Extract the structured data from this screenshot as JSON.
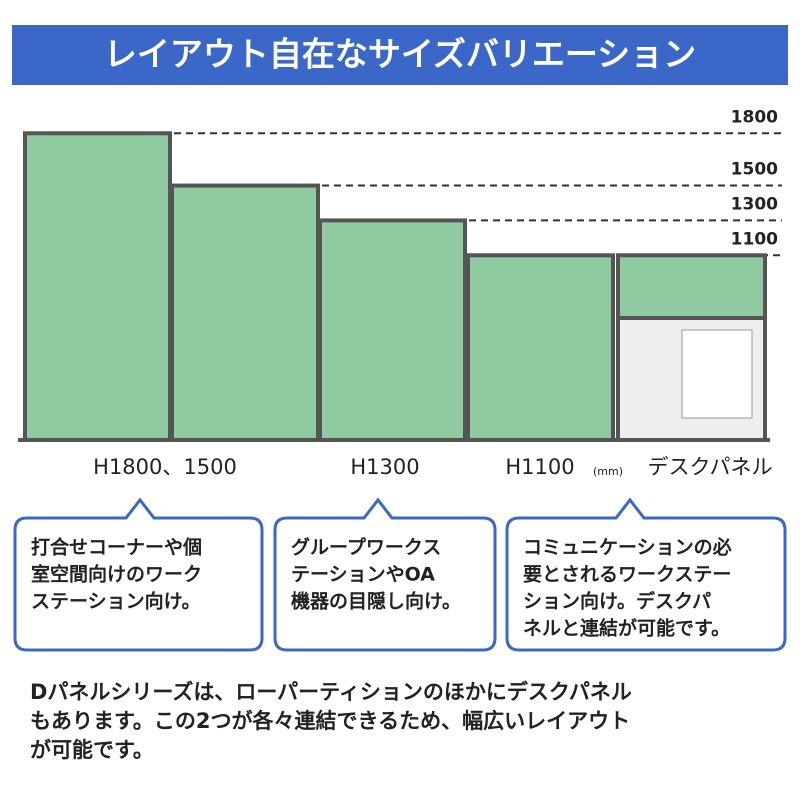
{
  "header": {
    "title": "レイアウト自在なサイズバリエーション"
  },
  "heights": [
    1800,
    1500,
    1300,
    1100
  ],
  "panel_labels": [
    "H1800、1500",
    "H1300",
    "H1100",
    "デスクパネル"
  ],
  "unit": "(mm)",
  "callouts": [
    {
      "lines": [
        "打合せコーナーや個",
        "室空間向けのワーク",
        "ステーション向け。"
      ]
    },
    {
      "lines": [
        "グループワークス",
        "テーションやOA",
        "機器の目隠し向け。"
      ]
    },
    {
      "lines": [
        "コミュニケーションの必",
        "要とされるワークステー",
        "ション向け。デスクパ",
        "ネルと連結が可能です。"
      ]
    }
  ],
  "footer": {
    "lines": [
      "Dパネルシリーズは、ローパーティションのほかにデスクパネル",
      "もあります。この2つが各々連結できるため、幅広いレイアウト",
      "が可能です。"
    ]
  }
}
